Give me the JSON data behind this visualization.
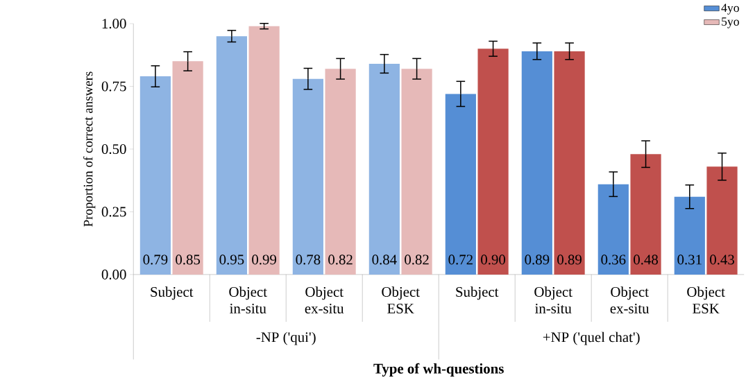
{
  "chart_data": {
    "type": "bar",
    "xlabel": "**Type of wh-questions**",
    "ylabel": "Proportion of correct answers",
    "categories": [
      "Subject",
      "Object in-situ",
      "Object ex-situ",
      "Object ESK",
      "Subject",
      "Object in-situ",
      "Object ex-situ",
      "Object ESK"
    ],
    "annotations": [
      "-NP ('qui')",
      "+NP ('quel chat')"
    ],
    "series": [
      {
        "name": "4yo",
        "color": "#558ed5",
        "colors": [
          "#8eb4e3",
          "#8eb4e3",
          "#8eb4e3",
          "#8eb4e3",
          "#558ed5",
          "#558ed5",
          "#558ed5",
          "#558ed5"
        ],
        "values": [
          0.79,
          0.95,
          0.78,
          0.84,
          0.72,
          0.89,
          0.36,
          0.31
        ],
        "value_labels": [
          "0.79",
          "0.95",
          "0.78",
          "0.84",
          "0.72",
          "0.89",
          "0.36",
          "0.31"
        ],
        "errors": [
          0.042,
          0.023,
          0.042,
          0.037,
          0.05,
          0.033,
          0.049,
          0.047
        ]
      },
      {
        "name": "5yo",
        "color": "#e6b9b8",
        "colors": [
          "#e6b9b8",
          "#e6b9b8",
          "#e6b9b8",
          "#e6b9b8",
          "#c0504d",
          "#c0504d",
          "#c0504d",
          "#c0504d"
        ],
        "values": [
          0.85,
          0.99,
          0.82,
          0.82,
          0.9,
          0.89,
          0.48,
          0.43
        ],
        "value_labels": [
          "0.85",
          "0.99",
          "0.82",
          "0.82",
          "0.90",
          "0.89",
          "0.48",
          "0.43"
        ],
        "errors": [
          0.038,
          0.011,
          0.041,
          0.041,
          0.03,
          0.033,
          0.053,
          0.054
        ]
      }
    ],
    "ylim": [
      0,
      1
    ],
    "yticks": [
      {
        "value": 0,
        "label": "0.00"
      },
      {
        "value": 0.25,
        "label": "0.25"
      },
      {
        "value": 0.5,
        "label": "0.50"
      },
      {
        "value": 0.75,
        "label": "0.75"
      },
      {
        "value": 1,
        "label": "1.00"
      }
    ],
    "grid": false,
    "legend": "top right"
  }
}
